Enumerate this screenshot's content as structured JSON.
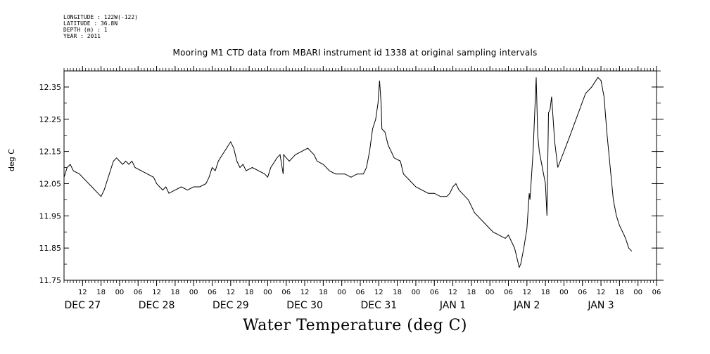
{
  "meta": {
    "longitude": "LONGITUDE : 122W(-122)",
    "latitude": "LATITUDE : 36.8N",
    "depth": "DEPTH (m) : 1",
    "year": "YEAR : 2011"
  },
  "chart_data": {
    "type": "line",
    "title": "Mooring M1 CTD data from MBARI instrument id 1338 at original sampling intervals",
    "xlabel": "Water Temperature (deg C)",
    "ylabel": "deg C",
    "ylim": [
      11.75,
      12.4
    ],
    "yticks": [
      11.75,
      11.85,
      11.95,
      12.05,
      12.15,
      12.25,
      12.35
    ],
    "ytick_labels": [
      "11.75",
      "11.85",
      "11.95",
      "12.05",
      "12.15",
      "12.25",
      "12.35"
    ],
    "xlim": [
      "2011-12-26T06:00",
      "2012-01-03T06:00"
    ],
    "hour_ticks": [
      {
        "t": "2011-12-26T12:00",
        "label": "12"
      },
      {
        "t": "2011-12-26T18:00",
        "label": "18"
      },
      {
        "t": "2011-12-27T00:00",
        "label": "00"
      },
      {
        "t": "2011-12-27T06:00",
        "label": "06"
      },
      {
        "t": "2011-12-27T12:00",
        "label": "12"
      },
      {
        "t": "2011-12-27T18:00",
        "label": "18"
      },
      {
        "t": "2011-12-28T00:00",
        "label": "00"
      },
      {
        "t": "2011-12-28T06:00",
        "label": "06"
      },
      {
        "t": "2011-12-28T12:00",
        "label": "12"
      },
      {
        "t": "2011-12-28T18:00",
        "label": "18"
      },
      {
        "t": "2011-12-29T00:00",
        "label": "00"
      },
      {
        "t": "2011-12-29T06:00",
        "label": "06"
      },
      {
        "t": "2011-12-29T12:00",
        "label": "12"
      },
      {
        "t": "2011-12-29T18:00",
        "label": "18"
      },
      {
        "t": "2011-12-30T00:00",
        "label": "00"
      },
      {
        "t": "2011-12-30T06:00",
        "label": "06"
      },
      {
        "t": "2011-12-30T12:00",
        "label": "12"
      },
      {
        "t": "2011-12-30T18:00",
        "label": "18"
      },
      {
        "t": "2011-12-31T00:00",
        "label": "00"
      },
      {
        "t": "2011-12-31T06:00",
        "label": "06"
      },
      {
        "t": "2011-12-31T12:00",
        "label": "12"
      },
      {
        "t": "2011-12-31T18:00",
        "label": "18"
      },
      {
        "t": "2012-01-01T00:00",
        "label": "00"
      },
      {
        "t": "2012-01-01T06:00",
        "label": "06"
      },
      {
        "t": "2012-01-01T12:00",
        "label": "12"
      },
      {
        "t": "2012-01-01T18:00",
        "label": "18"
      },
      {
        "t": "2012-01-02T00:00",
        "label": "00"
      },
      {
        "t": "2012-01-02T06:00",
        "label": "06"
      },
      {
        "t": "2012-01-02T12:00",
        "label": "12"
      },
      {
        "t": "2012-01-02T18:00",
        "label": "18"
      },
      {
        "t": "2012-01-03T00:00",
        "label": "00"
      },
      {
        "t": "2012-01-03T06:00",
        "label": "06"
      }
    ],
    "day_labels": [
      {
        "t": "2011-12-26T12:00",
        "label": "DEC 27"
      },
      {
        "t": "2011-12-27T12:00",
        "label": "DEC 28"
      },
      {
        "t": "2011-12-28T12:00",
        "label": "DEC 29"
      },
      {
        "t": "2011-12-29T12:00",
        "label": "DEC 30"
      },
      {
        "t": "2011-12-30T12:00",
        "label": "DEC 31"
      },
      {
        "t": "2011-12-31T12:00",
        "label": "JAN  1"
      },
      {
        "t": "2012-01-01T12:00",
        "label": "JAN  2"
      },
      {
        "t": "2012-01-02T12:00",
        "label": "JAN 3"
      }
    ],
    "series": [
      {
        "points": [
          [
            "2011-12-26T06:00",
            12.07
          ],
          [
            "2011-12-26T07:00",
            12.1
          ],
          [
            "2011-12-26T08:00",
            12.11
          ],
          [
            "2011-12-26T09:00",
            12.09
          ],
          [
            "2011-12-26T11:00",
            12.08
          ],
          [
            "2011-12-26T13:00",
            12.06
          ],
          [
            "2011-12-26T15:00",
            12.04
          ],
          [
            "2011-12-26T17:00",
            12.02
          ],
          [
            "2011-12-26T18:00",
            12.01
          ],
          [
            "2011-12-26T19:00",
            12.03
          ],
          [
            "2011-12-26T20:00",
            12.06
          ],
          [
            "2011-12-26T21:00",
            12.09
          ],
          [
            "2011-12-26T22:00",
            12.12
          ],
          [
            "2011-12-26T23:00",
            12.13
          ],
          [
            "2011-12-27T00:00",
            12.12
          ],
          [
            "2011-12-27T01:00",
            12.11
          ],
          [
            "2011-12-27T02:00",
            12.12
          ],
          [
            "2011-12-27T03:00",
            12.11
          ],
          [
            "2011-12-27T04:00",
            12.12
          ],
          [
            "2011-12-27T05:00",
            12.1
          ],
          [
            "2011-12-27T07:00",
            12.09
          ],
          [
            "2011-12-27T09:00",
            12.08
          ],
          [
            "2011-12-27T11:00",
            12.07
          ],
          [
            "2011-12-27T12:00",
            12.05
          ],
          [
            "2011-12-27T13:00",
            12.04
          ],
          [
            "2011-12-27T14:00",
            12.03
          ],
          [
            "2011-12-27T15:00",
            12.04
          ],
          [
            "2011-12-27T16:00",
            12.02
          ],
          [
            "2011-12-27T18:00",
            12.03
          ],
          [
            "2011-12-27T20:00",
            12.04
          ],
          [
            "2011-12-27T22:00",
            12.03
          ],
          [
            "2011-12-28T00:00",
            12.04
          ],
          [
            "2011-12-28T02:00",
            12.04
          ],
          [
            "2011-12-28T04:00",
            12.05
          ],
          [
            "2011-12-28T05:00",
            12.07
          ],
          [
            "2011-12-28T06:00",
            12.1
          ],
          [
            "2011-12-28T07:00",
            12.09
          ],
          [
            "2011-12-28T08:00",
            12.12
          ],
          [
            "2011-12-28T10:00",
            12.15
          ],
          [
            "2011-12-28T12:00",
            12.18
          ],
          [
            "2011-12-28T13:00",
            12.16
          ],
          [
            "2011-12-28T14:00",
            12.12
          ],
          [
            "2011-12-28T15:00",
            12.1
          ],
          [
            "2011-12-28T16:00",
            12.11
          ],
          [
            "2011-12-28T17:00",
            12.09
          ],
          [
            "2011-12-28T19:00",
            12.1
          ],
          [
            "2011-12-28T21:00",
            12.09
          ],
          [
            "2011-12-28T23:00",
            12.08
          ],
          [
            "2011-12-29T00:00",
            12.07
          ],
          [
            "2011-12-29T01:00",
            12.1
          ],
          [
            "2011-12-29T03:00",
            12.13
          ],
          [
            "2011-12-29T04:00",
            12.14
          ],
          [
            "2011-12-29T05:00",
            12.08
          ],
          [
            "2011-12-29T05:10",
            12.14
          ],
          [
            "2011-12-29T06:00",
            12.13
          ],
          [
            "2011-12-29T07:00",
            12.12
          ],
          [
            "2011-12-29T08:00",
            12.13
          ],
          [
            "2011-12-29T09:00",
            12.14
          ],
          [
            "2011-12-29T11:00",
            12.15
          ],
          [
            "2011-12-29T13:00",
            12.16
          ],
          [
            "2011-12-29T15:00",
            12.14
          ],
          [
            "2011-12-29T16:00",
            12.12
          ],
          [
            "2011-12-29T18:00",
            12.11
          ],
          [
            "2011-12-29T20:00",
            12.09
          ],
          [
            "2011-12-29T22:00",
            12.08
          ],
          [
            "2011-12-30T01:00",
            12.08
          ],
          [
            "2011-12-30T03:00",
            12.07
          ],
          [
            "2011-12-30T05:00",
            12.08
          ],
          [
            "2011-12-30T07:00",
            12.08
          ],
          [
            "2011-12-30T08:00",
            12.1
          ],
          [
            "2011-12-30T09:00",
            12.15
          ],
          [
            "2011-12-30T10:00",
            12.22
          ],
          [
            "2011-12-30T11:00",
            12.25
          ],
          [
            "2011-12-30T11:45",
            12.3
          ],
          [
            "2011-12-30T12:15",
            12.37
          ],
          [
            "2011-12-30T12:45",
            12.3
          ],
          [
            "2011-12-30T13:00",
            12.22
          ],
          [
            "2011-12-30T14:00",
            12.21
          ],
          [
            "2011-12-30T15:00",
            12.17
          ],
          [
            "2011-12-30T16:00",
            12.15
          ],
          [
            "2011-12-30T17:00",
            12.13
          ],
          [
            "2011-12-30T19:00",
            12.12
          ],
          [
            "2011-12-30T20:00",
            12.08
          ],
          [
            "2011-12-30T22:00",
            12.06
          ],
          [
            "2011-12-31T00:00",
            12.04
          ],
          [
            "2011-12-31T02:00",
            12.03
          ],
          [
            "2011-12-31T04:00",
            12.02
          ],
          [
            "2011-12-31T06:00",
            12.02
          ],
          [
            "2011-12-31T08:00",
            12.01
          ],
          [
            "2011-12-31T10:00",
            12.01
          ],
          [
            "2011-12-31T11:00",
            12.02
          ],
          [
            "2011-12-31T12:00",
            12.04
          ],
          [
            "2011-12-31T13:00",
            12.05
          ],
          [
            "2011-12-31T14:00",
            12.03
          ],
          [
            "2011-12-31T15:00",
            12.02
          ],
          [
            "2011-12-31T17:00",
            12.0
          ],
          [
            "2011-12-31T19:00",
            11.96
          ],
          [
            "2011-12-31T21:00",
            11.94
          ],
          [
            "2011-12-31T23:00",
            11.92
          ],
          [
            "2012-01-01T01:00",
            11.9
          ],
          [
            "2012-01-01T03:00",
            11.89
          ],
          [
            "2012-01-01T05:00",
            11.88
          ],
          [
            "2012-01-01T06:00",
            11.89
          ],
          [
            "2012-01-01T07:00",
            11.87
          ],
          [
            "2012-01-01T08:00",
            11.85
          ],
          [
            "2012-01-01T09:00",
            11.81
          ],
          [
            "2012-01-01T09:30",
            11.79
          ],
          [
            "2012-01-01T10:00",
            11.8
          ],
          [
            "2012-01-01T11:00",
            11.85
          ],
          [
            "2012-01-01T12:00",
            11.91
          ],
          [
            "2012-01-01T12:45",
            12.02
          ],
          [
            "2012-01-01T13:00",
            12.0
          ],
          [
            "2012-01-01T14:00",
            12.15
          ],
          [
            "2012-01-01T15:00",
            12.38
          ],
          [
            "2012-01-01T15:30",
            12.2
          ],
          [
            "2012-01-01T16:00",
            12.15
          ],
          [
            "2012-01-01T17:00",
            12.1
          ],
          [
            "2012-01-01T18:00",
            12.05
          ],
          [
            "2012-01-01T18:30",
            11.95
          ],
          [
            "2012-01-01T19:00",
            12.27
          ],
          [
            "2012-01-01T19:30",
            12.28
          ],
          [
            "2012-01-01T20:00",
            12.32
          ],
          [
            "2012-01-01T20:30",
            12.25
          ],
          [
            "2012-01-01T21:00",
            12.18
          ],
          [
            "2012-01-01T22:00",
            12.1
          ],
          [
            "2012-01-02T02:00",
            12.2
          ],
          [
            "2012-01-02T07:00",
            12.33
          ],
          [
            "2012-01-02T09:00",
            12.35
          ],
          [
            "2012-01-02T11:00",
            12.38
          ],
          [
            "2012-01-02T12:00",
            12.37
          ],
          [
            "2012-01-02T13:00",
            12.32
          ],
          [
            "2012-01-02T14:00",
            12.2
          ],
          [
            "2012-01-02T15:00",
            12.1
          ],
          [
            "2012-01-02T16:00",
            12.0
          ],
          [
            "2012-01-02T17:00",
            11.95
          ],
          [
            "2012-01-02T18:00",
            11.92
          ],
          [
            "2012-01-02T19:00",
            11.9
          ],
          [
            "2012-01-02T20:00",
            11.88
          ],
          [
            "2012-01-02T21:00",
            11.85
          ],
          [
            "2012-01-02T22:00",
            11.84
          ]
        ]
      }
    ],
    "grid": false,
    "legend": "none"
  }
}
